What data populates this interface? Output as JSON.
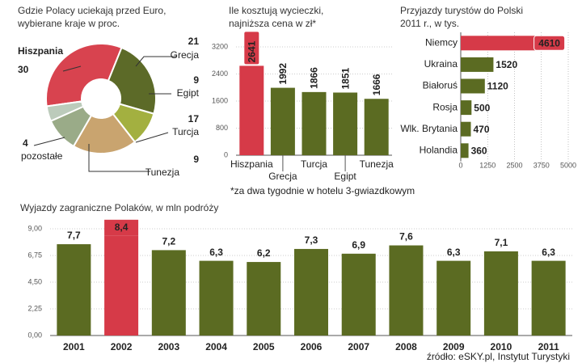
{
  "chart_data": [
    {
      "type": "pie",
      "title": [
        "Gdzie Polacy uciekają przed Euro,",
        "wybierane kraje w proc."
      ],
      "categories": [
        "Hiszpania",
        "Grecja",
        "Egipt",
        "Turcja",
        "Tunezja",
        "pozostałe"
      ],
      "values": [
        30,
        21,
        9,
        17,
        9,
        4
      ],
      "colors": [
        "#d8434f",
        "#5c6a28",
        "#a3b040",
        "#c9a46f",
        "#9aab88",
        "#bccbbb"
      ]
    },
    {
      "type": "bar",
      "title": [
        "Ile kosztują wycieczki,",
        "najniższa cena w zł*"
      ],
      "categories": [
        "Hiszpania",
        "Grecja",
        "Turcja",
        "Egipt",
        "Tunezja"
      ],
      "values": [
        2641,
        1992,
        1866,
        1851,
        1666
      ],
      "colors": [
        "#d63a48",
        "#5b6b22",
        "#5b6b22",
        "#5b6b22",
        "#5b6b22"
      ],
      "highlight_color": "#d63a48",
      "ylim": [
        0,
        3200
      ],
      "yticks": [
        0,
        800,
        1600,
        2400,
        3200
      ],
      "grid": true,
      "note": "*za dwa tygodnie w hotelu 3-gwiazdkowym"
    },
    {
      "type": "bar",
      "horizontal": true,
      "title": [
        "Przyjazdy turystów do Polski",
        "2011 r., w tys."
      ],
      "categories": [
        "Niemcy",
        "Ukraina",
        "Białoruś",
        "Rosja",
        "Wlk. Brytania",
        "Holandia"
      ],
      "values": [
        4610,
        1520,
        1120,
        500,
        470,
        360
      ],
      "colors": [
        "#d63a48",
        "#5b6b22",
        "#5b6b22",
        "#5b6b22",
        "#5b6b22",
        "#5b6b22"
      ],
      "highlight_color": "#d63a48",
      "xlim": [
        0,
        5000
      ],
      "xticks": [
        0,
        1250,
        2500,
        3750,
        5000
      ],
      "grid": true
    },
    {
      "type": "bar",
      "title": [
        "Wyjazdy zagraniczne Polaków, w mln podróży"
      ],
      "categories": [
        "2001",
        "2002",
        "2003",
        "2004",
        "2005",
        "2006",
        "2007",
        "2008",
        "2009",
        "2010",
        "2011"
      ],
      "values": [
        7.7,
        8.4,
        7.2,
        6.3,
        6.2,
        7.3,
        6.9,
        7.6,
        6.3,
        7.1,
        6.3
      ],
      "value_labels": [
        "7,7",
        "8,4",
        "7,2",
        "6,3",
        "6,2",
        "7,3",
        "6,9",
        "7,6",
        "6,3",
        "7,1",
        "6,3"
      ],
      "colors": [
        "#5b6b22",
        "#d63a48",
        "#5b6b22",
        "#5b6b22",
        "#5b6b22",
        "#5b6b22",
        "#5b6b22",
        "#5b6b22",
        "#5b6b22",
        "#5b6b22",
        "#5b6b22"
      ],
      "highlight_color": "#d63a48",
      "ylim": [
        0,
        9
      ],
      "yticks": [
        {
          "value": 0,
          "label": "0,00"
        },
        {
          "value": 2.25,
          "label": "2,25"
        },
        {
          "value": 4.5,
          "label": "4,50"
        },
        {
          "value": 6.75,
          "label": "6,75"
        },
        {
          "value": 9,
          "label": "9,00"
        }
      ],
      "grid": true,
      "source": "źródło: eSKY.pl, Instytut Turystyki"
    }
  ]
}
